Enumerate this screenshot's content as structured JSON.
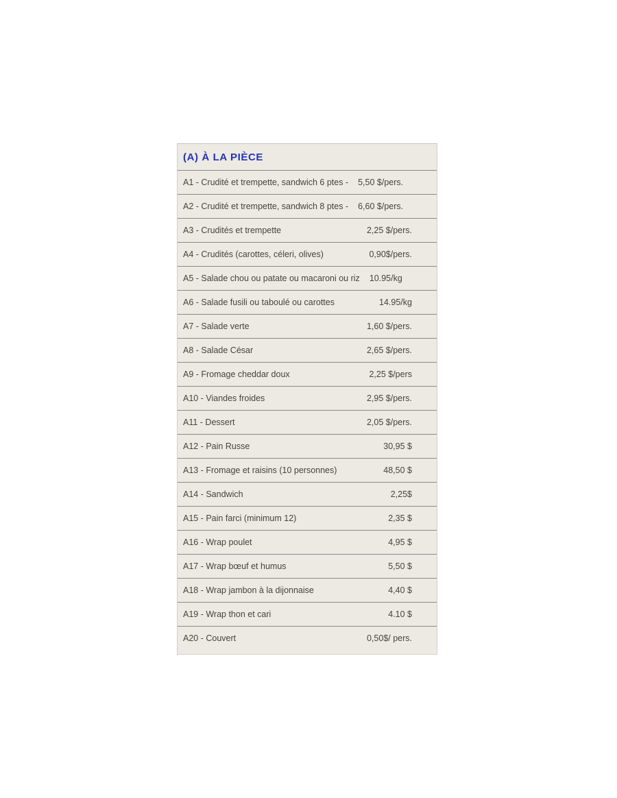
{
  "section": {
    "title": "(A) À LA PIÈCE"
  },
  "rows": [
    {
      "label": "A1 - Crudité et trempette, sandwich 6 ptes -",
      "price": "5,50 $/pers.",
      "inline": true
    },
    {
      "label": "A2 - Crudité et trempette, sandwich 8 ptes -",
      "price": "6,60 $/pers.",
      "inline": true
    },
    {
      "label": "A3 - Crudités et trempette",
      "price": "2,25 $/pers.",
      "inline": false
    },
    {
      "label": "A4 - Crudités (carottes, céleri, olives)",
      "price": "0,90$/pers.",
      "inline": false
    },
    {
      "label": "A5 - Salade chou ou patate ou macaroni ou riz",
      "price": "10.95/kg",
      "inline": true
    },
    {
      "label": "A6 - Salade fusili ou taboulé ou carottes",
      "price": "14.95/kg",
      "inline": false
    },
    {
      "label": "A7 - Salade verte",
      "price": "1,60 $/pers.",
      "inline": false
    },
    {
      "label": "A8 - Salade César",
      "price": "2,65 $/pers.",
      "inline": false
    },
    {
      "label": "A9 - Fromage cheddar doux",
      "price": "2,25 $/pers",
      "inline": false
    },
    {
      "label": "A10 - Viandes froides",
      "price": "2,95 $/pers.",
      "inline": false
    },
    {
      "label": "A11 - Dessert",
      "price": "2,05 $/pers.",
      "inline": false
    },
    {
      "label": "A12 - Pain Russe",
      "price": "30,95 $",
      "inline": false
    },
    {
      "label": "A13 - Fromage et raisins (10 personnes)",
      "price": "48,50 $",
      "inline": false
    },
    {
      "label": "A14 - Sandwich",
      "price": "2,25$",
      "inline": false
    },
    {
      "label": "A15 - Pain farci (minimum 12)",
      "price": "2,35 $",
      "inline": false
    },
    {
      "label": "A16 - Wrap poulet",
      "price": "4,95 $",
      "inline": false
    },
    {
      "label": "A17 - Wrap bœuf et humus",
      "price": "5,50 $",
      "inline": false
    },
    {
      "label": "A18 - Wrap jambon à la dijonnaise",
      "price": "4,40 $",
      "inline": false
    },
    {
      "label": "A19 - Wrap thon et cari",
      "price": "4.10 $",
      "inline": false
    },
    {
      "label": "A20 - Couvert",
      "price": "0,50$/ pers.",
      "inline": false
    }
  ],
  "colors": {
    "panel_background": "#eceae3",
    "separator_line": "#8b8880",
    "title_blue": "#2433b8",
    "body_text": "#46433c",
    "page_background": "#ffffff"
  }
}
